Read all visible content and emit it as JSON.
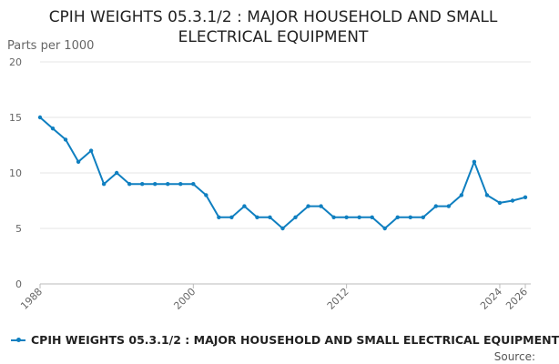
{
  "chart_data": {
    "type": "line",
    "title_line1": "CPIH WEIGHTS 05.3.1/2 : MAJOR HOUSEHOLD AND SMALL",
    "title_line2": "ELECTRICAL EQUIPMENT",
    "ylabel": "Parts per 1000",
    "ylim": [
      0,
      20
    ],
    "yticks": [
      0,
      5,
      10,
      15,
      20
    ],
    "xlim": [
      1988,
      2026
    ],
    "xticks": [
      1988,
      2000,
      2012,
      2024,
      2026
    ],
    "grid": true,
    "legend_position": "bottom-left",
    "series": [
      {
        "name": "CPIH WEIGHTS 05.3.1/2 : MAJOR HOUSEHOLD AND SMALL ELECTRICAL EQUIPMENT",
        "color": "#0f7fc0",
        "x": [
          1988,
          1989,
          1990,
          1991,
          1992,
          1993,
          1994,
          1995,
          1996,
          1997,
          1998,
          1999,
          2000,
          2001,
          2002,
          2003,
          2004,
          2005,
          2006,
          2007,
          2008,
          2009,
          2010,
          2011,
          2012,
          2013,
          2014,
          2015,
          2016,
          2017,
          2018,
          2019,
          2020,
          2021,
          2022,
          2023,
          2024,
          2025,
          2026
        ],
        "values": [
          15,
          14,
          13,
          11,
          12,
          9,
          10,
          9,
          9,
          9,
          9,
          9,
          9,
          8,
          6,
          6,
          7,
          6,
          6,
          5,
          6,
          7,
          7,
          6,
          6,
          6,
          6,
          5,
          6,
          6,
          6,
          7,
          7,
          8,
          11,
          8,
          7.3,
          7.5,
          7.8
        ]
      }
    ],
    "source_label": "Source:"
  }
}
